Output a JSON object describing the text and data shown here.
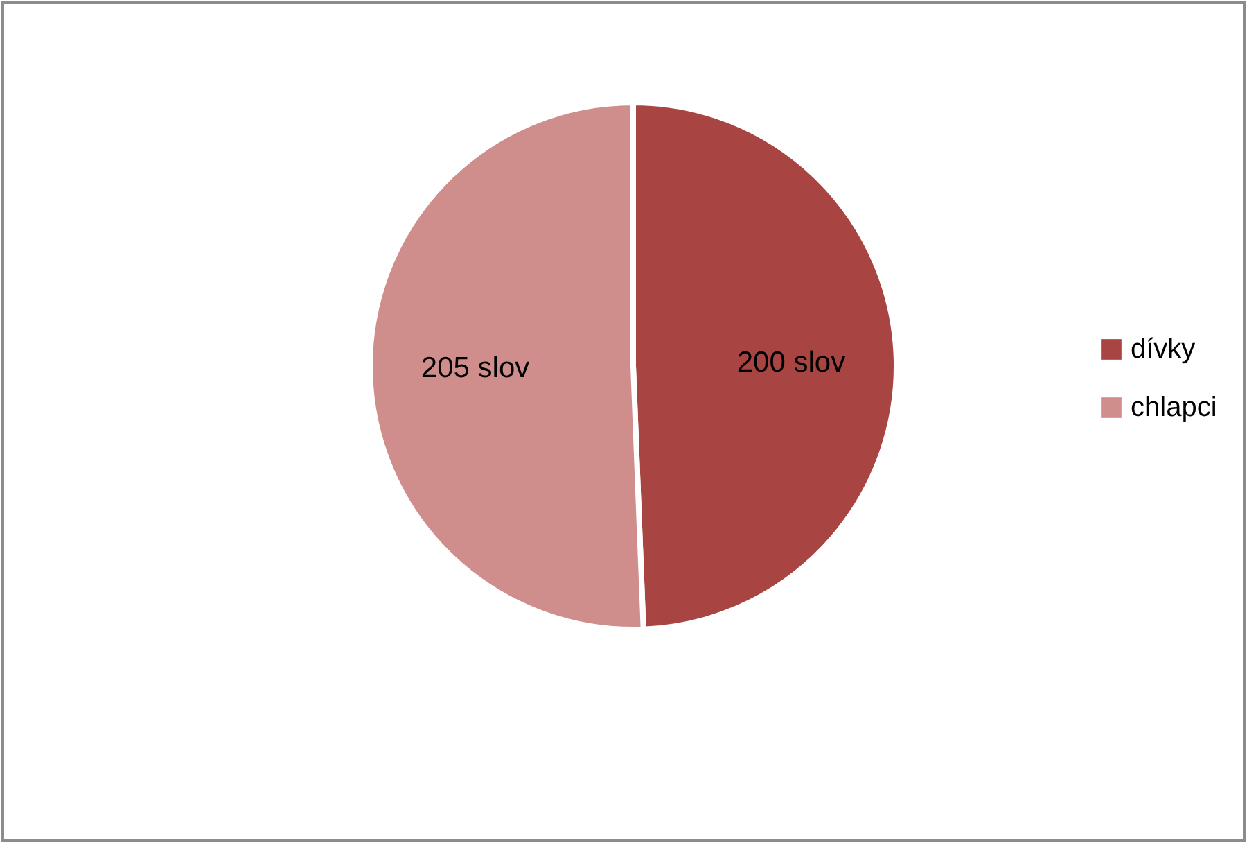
{
  "chart_data": {
    "type": "pie",
    "categories": [
      "dívky",
      "chlapci"
    ],
    "values": [
      200,
      205
    ],
    "colors": [
      "#a84442",
      "#cf8e8c"
    ],
    "value_labels": [
      "200 slov",
      "205 slov"
    ],
    "legend": "right"
  }
}
